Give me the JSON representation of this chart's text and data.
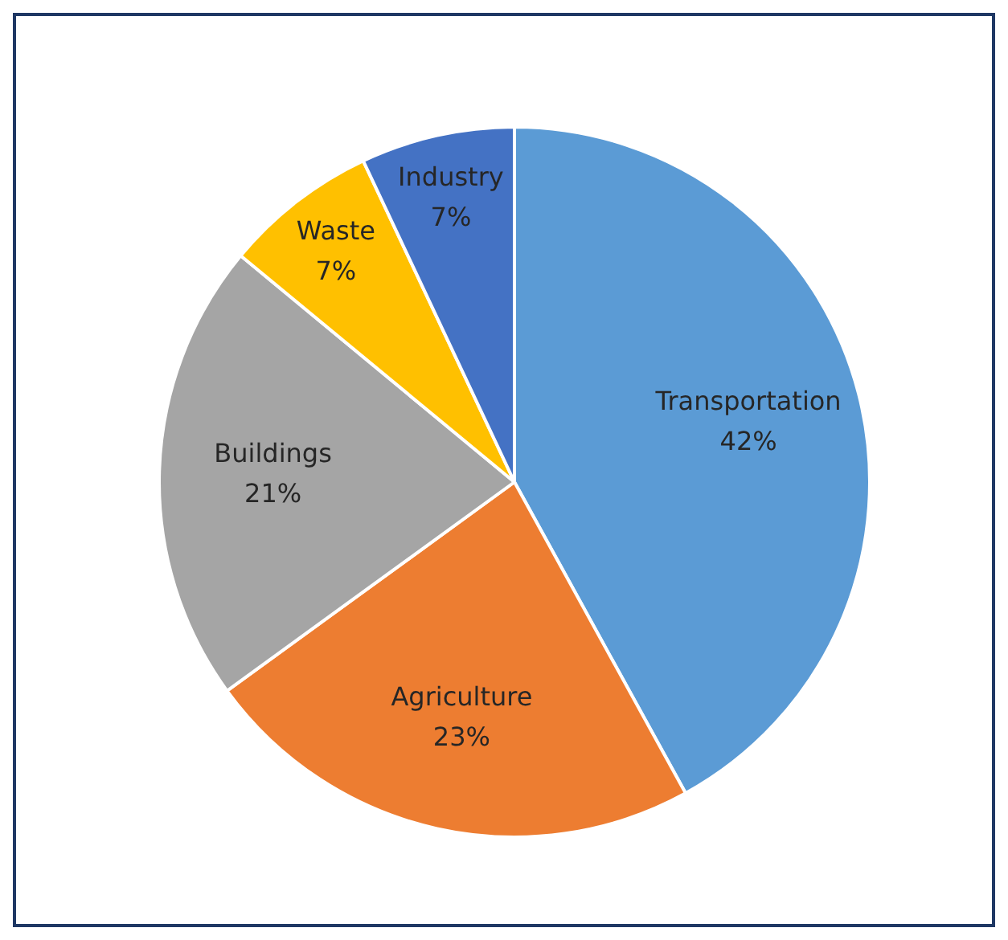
{
  "chart_data": {
    "type": "pie",
    "categories": [
      "Transportation",
      "Agriculture",
      "Buildings",
      "Waste",
      "Industry"
    ],
    "values": [
      42,
      23,
      21,
      7,
      7
    ],
    "value_labels": [
      "42%",
      "23%",
      "21%",
      "7%",
      "7%"
    ],
    "colors": [
      "#5b9bd5",
      "#ed7d31",
      "#a5a5a5",
      "#ffc000",
      "#4472c4"
    ],
    "legend": false
  }
}
